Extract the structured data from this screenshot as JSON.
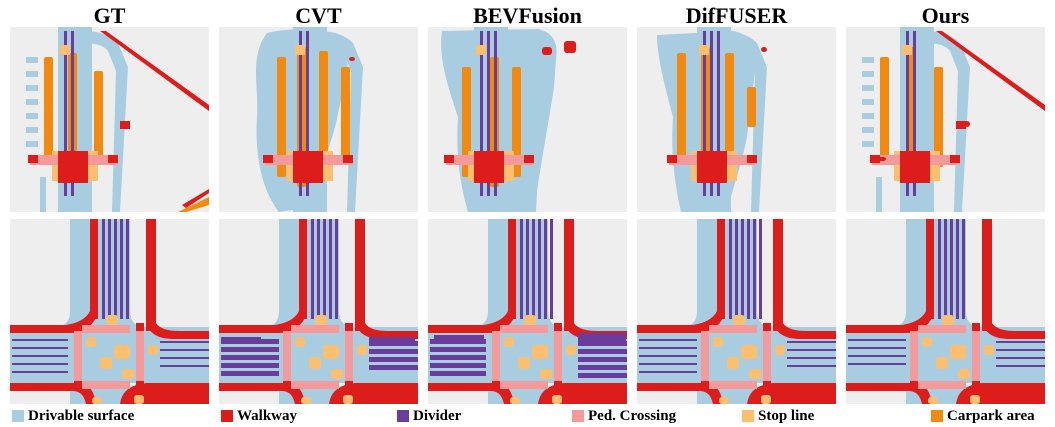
{
  "columns": [
    "GT",
    "CVT",
    "BEVFusion",
    "DifFUSER",
    "Ours"
  ],
  "legend": [
    {
      "label": "Drivable surface",
      "color": "#a8cde0"
    },
    {
      "label": "Walkway",
      "color": "#dd1c1c"
    },
    {
      "label": "Divider",
      "color": "#6a3d9a"
    },
    {
      "label": "Ped. Crossing",
      "color": "#f49a9a"
    },
    {
      "label": "Stop line",
      "color": "#fbbf6f"
    },
    {
      "label": "Carpark area",
      "color": "#f28a0f"
    }
  ],
  "colors": {
    "background": "#eeeeee",
    "drivable": "#a8cde0",
    "walkway": "#dd1c1c",
    "divider": "#6a3d9a",
    "ped_crossing": "#f49a9a",
    "stop_line": "#fbbf6f",
    "carpark": "#f28a0f"
  }
}
